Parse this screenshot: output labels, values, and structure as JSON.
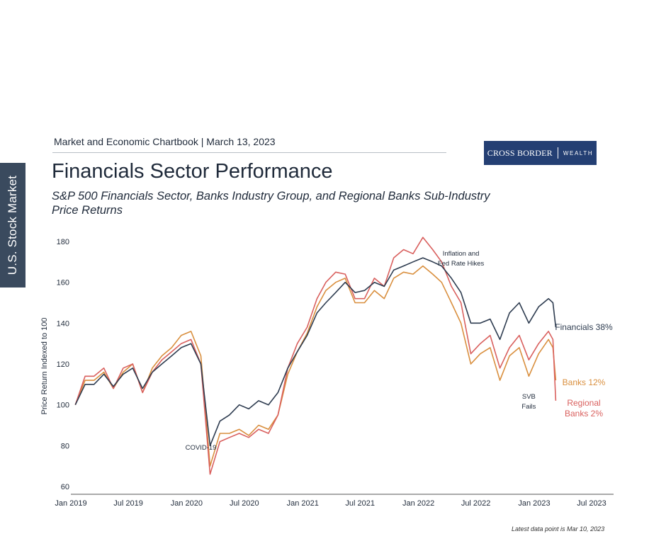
{
  "side_tab": "U.S. Stock Market",
  "header": {
    "chartbook": "Market and Economic Chartbook | March 13, 2023",
    "logo_left": "CROSS BORDER",
    "logo_right": "WEALTH"
  },
  "title": "Financials Sector Performance",
  "subtitle": "S&P 500 Financials Sector, Banks Industry Group, and Regional Banks Sub-Industry Price Returns",
  "footnote": "Latest data point is Mar 10, 2023",
  "colors": {
    "financials": "#2e3c50",
    "banks": "#d98f3e",
    "regional": "#d9605e"
  },
  "chart_data": {
    "type": "line",
    "ylabel": "Price Return Indexed to 100",
    "ylim": [
      60,
      180
    ],
    "yticks": [
      60,
      80,
      100,
      120,
      140,
      160,
      180
    ],
    "xlim": [
      "2019-01-01",
      "2023-07-01"
    ],
    "xticks": [
      "Jan 2019",
      "Jul 2019",
      "Jan 2020",
      "Jul 2020",
      "Jan 2021",
      "Jul 2021",
      "Jan 2022",
      "Jul 2022",
      "Jan 2023",
      "Jul 2023"
    ],
    "x": [
      "2019-01",
      "2019-02",
      "2019-03",
      "2019-04",
      "2019-05",
      "2019-06",
      "2019-07",
      "2019-08",
      "2019-09",
      "2019-10",
      "2019-11",
      "2019-12",
      "2020-01",
      "2020-02",
      "2020-03",
      "2020-04",
      "2020-05",
      "2020-06",
      "2020-07",
      "2020-08",
      "2020-09",
      "2020-10",
      "2020-11",
      "2020-12",
      "2021-01",
      "2021-02",
      "2021-03",
      "2021-04",
      "2021-05",
      "2021-06",
      "2021-07",
      "2021-08",
      "2021-09",
      "2021-10",
      "2021-11",
      "2021-12",
      "2022-01",
      "2022-02",
      "2022-03",
      "2022-04",
      "2022-05",
      "2022-06",
      "2022-07",
      "2022-08",
      "2022-09",
      "2022-10",
      "2022-11",
      "2022-12",
      "2023-01",
      "2023-02",
      "2023-03-01",
      "2023-03-10"
    ],
    "series": [
      {
        "name": "Financials 38%",
        "key": "financials",
        "values": [
          100,
          110,
          110,
          115,
          109,
          115,
          118,
          108,
          116,
          120,
          124,
          128,
          130,
          120,
          80,
          92,
          95,
          100,
          98,
          102,
          100,
          106,
          118,
          126,
          134,
          145,
          150,
          155,
          160,
          155,
          156,
          160,
          158,
          166,
          168,
          170,
          172,
          170,
          168,
          162,
          155,
          140,
          140,
          142,
          132,
          145,
          150,
          140,
          148,
          152,
          150,
          138
        ]
      },
      {
        "name": "Banks 12%",
        "key": "banks",
        "values": [
          100,
          112,
          112,
          116,
          108,
          116,
          120,
          106,
          118,
          124,
          128,
          134,
          136,
          124,
          70,
          86,
          86,
          88,
          85,
          90,
          88,
          95,
          115,
          126,
          135,
          148,
          156,
          160,
          162,
          150,
          150,
          156,
          152,
          162,
          165,
          164,
          168,
          164,
          160,
          150,
          140,
          120,
          125,
          128,
          112,
          124,
          128,
          114,
          125,
          132,
          128,
          112
        ]
      },
      {
        "name": "Regional Banks 2%",
        "key": "regional",
        "values": [
          100,
          114,
          114,
          118,
          108,
          118,
          120,
          106,
          116,
          122,
          126,
          130,
          132,
          120,
          66,
          82,
          84,
          86,
          84,
          88,
          86,
          95,
          118,
          130,
          138,
          152,
          160,
          165,
          164,
          152,
          152,
          162,
          158,
          172,
          176,
          174,
          182,
          176,
          170,
          158,
          150,
          125,
          130,
          134,
          118,
          128,
          134,
          122,
          130,
          136,
          132,
          102
        ]
      }
    ],
    "annotations": [
      {
        "text": "COVID-19",
        "x": "2020-02-15",
        "y": 78
      },
      {
        "text": "Inflation and Fed Rate Hikes",
        "lines": [
          "Inflation and",
          "Fed Rate Hikes"
        ],
        "x": "2022-05-15",
        "y": 173
      },
      {
        "text": "SVB Fails",
        "lines": [
          "SVB",
          "Fails"
        ],
        "x": "2022-12-15",
        "y": 103
      }
    ],
    "end_labels": [
      {
        "lines": [
          "Financials 38%"
        ],
        "key": "financials",
        "y": 138
      },
      {
        "lines": [
          "Banks 12%"
        ],
        "key": "banks",
        "y": 111
      },
      {
        "lines": [
          "Regional",
          "Banks 2%"
        ],
        "key": "regional",
        "y": 101
      }
    ]
  }
}
